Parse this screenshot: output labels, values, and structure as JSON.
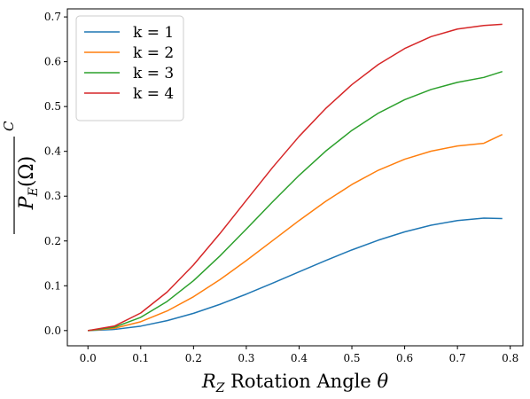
{
  "chart_data": {
    "type": "line",
    "title": "",
    "xlabel_var": "R",
    "xlabel_sub": "Z",
    "xlabel_text": " Rotation Angle ",
    "xlabel_theta": "θ",
    "ylabel_text": "P",
    "ylabel_sub": "E",
    "ylabel_paren": "(Ω)",
    "ylabel_sup": "C",
    "xlim": [
      -0.039,
      0.824
    ],
    "ylim": [
      -0.034,
      0.718
    ],
    "xticks": [
      0.0,
      0.1,
      0.2,
      0.3,
      0.4,
      0.5,
      0.6,
      0.7,
      0.8
    ],
    "xtick_labels": [
      "0.0",
      "0.1",
      "0.2",
      "0.3",
      "0.4",
      "0.5",
      "0.6",
      "0.7",
      "0.8"
    ],
    "yticks": [
      0.0,
      0.1,
      0.2,
      0.3,
      0.4,
      0.5,
      0.6,
      0.7
    ],
    "ytick_labels": [
      "0.0",
      "0.1",
      "0.2",
      "0.3",
      "0.4",
      "0.5",
      "0.6",
      "0.7"
    ],
    "grid": false,
    "legend_position": "upper-left",
    "x": [
      0.0,
      0.05,
      0.1,
      0.15,
      0.2,
      0.25,
      0.3,
      0.35,
      0.4,
      0.45,
      0.5,
      0.55,
      0.6,
      0.65,
      0.7,
      0.75,
      0.785
    ],
    "series": [
      {
        "name": "k = 1",
        "color": "#1f77b4",
        "values": [
          0.0,
          0.0025,
          0.0099,
          0.0221,
          0.0385,
          0.0585,
          0.0813,
          0.1058,
          0.131,
          0.1562,
          0.18,
          0.2017,
          0.2203,
          0.2352,
          0.2455,
          0.2509,
          0.25
        ]
      },
      {
        "name": "k = 2",
        "color": "#ff7f0e",
        "values": [
          0.0,
          0.005,
          0.0197,
          0.0437,
          0.0755,
          0.1136,
          0.1562,
          0.2009,
          0.2456,
          0.288,
          0.326,
          0.3578,
          0.3824,
          0.4004,
          0.412,
          0.418,
          0.4375
        ]
      },
      {
        "name": "k = 3",
        "color": "#2ca02c",
        "values": [
          0.0,
          0.0075,
          0.0295,
          0.065,
          0.1114,
          0.1665,
          0.2264,
          0.2876,
          0.3464,
          0.4001,
          0.4467,
          0.4852,
          0.5152,
          0.538,
          0.554,
          0.565,
          0.5781
        ]
      },
      {
        "name": "k = 4",
        "color": "#d62728",
        "values": [
          0.0,
          0.01,
          0.0392,
          0.086,
          0.1466,
          0.2165,
          0.2907,
          0.3644,
          0.4334,
          0.4952,
          0.5489,
          0.5938,
          0.6295,
          0.656,
          0.673,
          0.681,
          0.6836
        ]
      }
    ]
  }
}
